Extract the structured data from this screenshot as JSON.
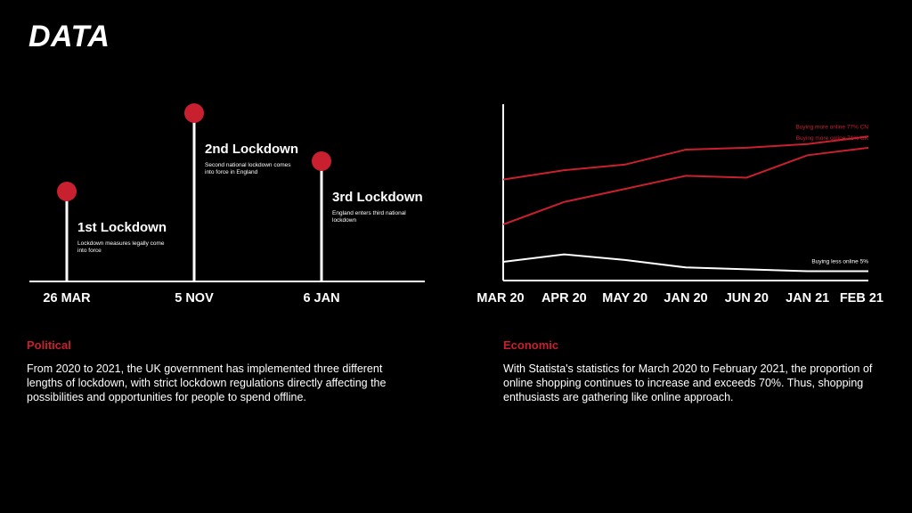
{
  "page_title": "DATA",
  "political": {
    "label": "Political",
    "text": "From 2020 to 2021, the UK government has implemented three different lengths of lockdown, with strict lockdown regulations directly affecting the possibilities and opportunities for people to spend offline."
  },
  "economic": {
    "label": "Economic",
    "text": "With Statista's statistics for March 2020 to February 2021, the proportion of online shopping continues to increase and exceeds 70%. Thus, shopping enthusiasts are gathering like online approach."
  },
  "colors": {
    "accent": "#c8202f",
    "background": "#000000",
    "text": "#ffffff"
  },
  "chart_data": [
    {
      "type": "timeline",
      "events": [
        {
          "date": "26 MAR",
          "title": "1st Lockdown",
          "desc": [
            "Lockdown measures legally come",
            "into force"
          ],
          "level": 1
        },
        {
          "date": "5 NOV",
          "title": "2nd Lockdown",
          "desc": [
            "Second national lockdown comes",
            "into force in England"
          ],
          "level": 3
        },
        {
          "date": "6 JAN",
          "title": "3rd Lockdown",
          "desc": [
            "England enters third national",
            "lockdown"
          ],
          "level": 2
        }
      ]
    },
    {
      "type": "line",
      "categories": [
        "MAR 20",
        "APR 20",
        "MAY 20",
        "JAN 20",
        "JUN 20",
        "JAN 21",
        "FEB 21"
      ],
      "series": [
        {
          "name": "Buying more online 77% CN",
          "color": "#c8202f",
          "values": [
            54,
            59,
            62,
            70,
            71,
            73,
            77
          ]
        },
        {
          "name": "Buying more online 71% UK",
          "color": "#c8202f",
          "values": [
            30,
            42,
            49,
            56,
            55,
            67,
            71
          ]
        },
        {
          "name": "Buying less online 5%",
          "color": "#ffffff",
          "values": [
            10,
            14,
            11,
            7,
            6,
            5,
            5
          ]
        }
      ],
      "ylim": [
        0,
        100
      ],
      "grid": false
    }
  ]
}
